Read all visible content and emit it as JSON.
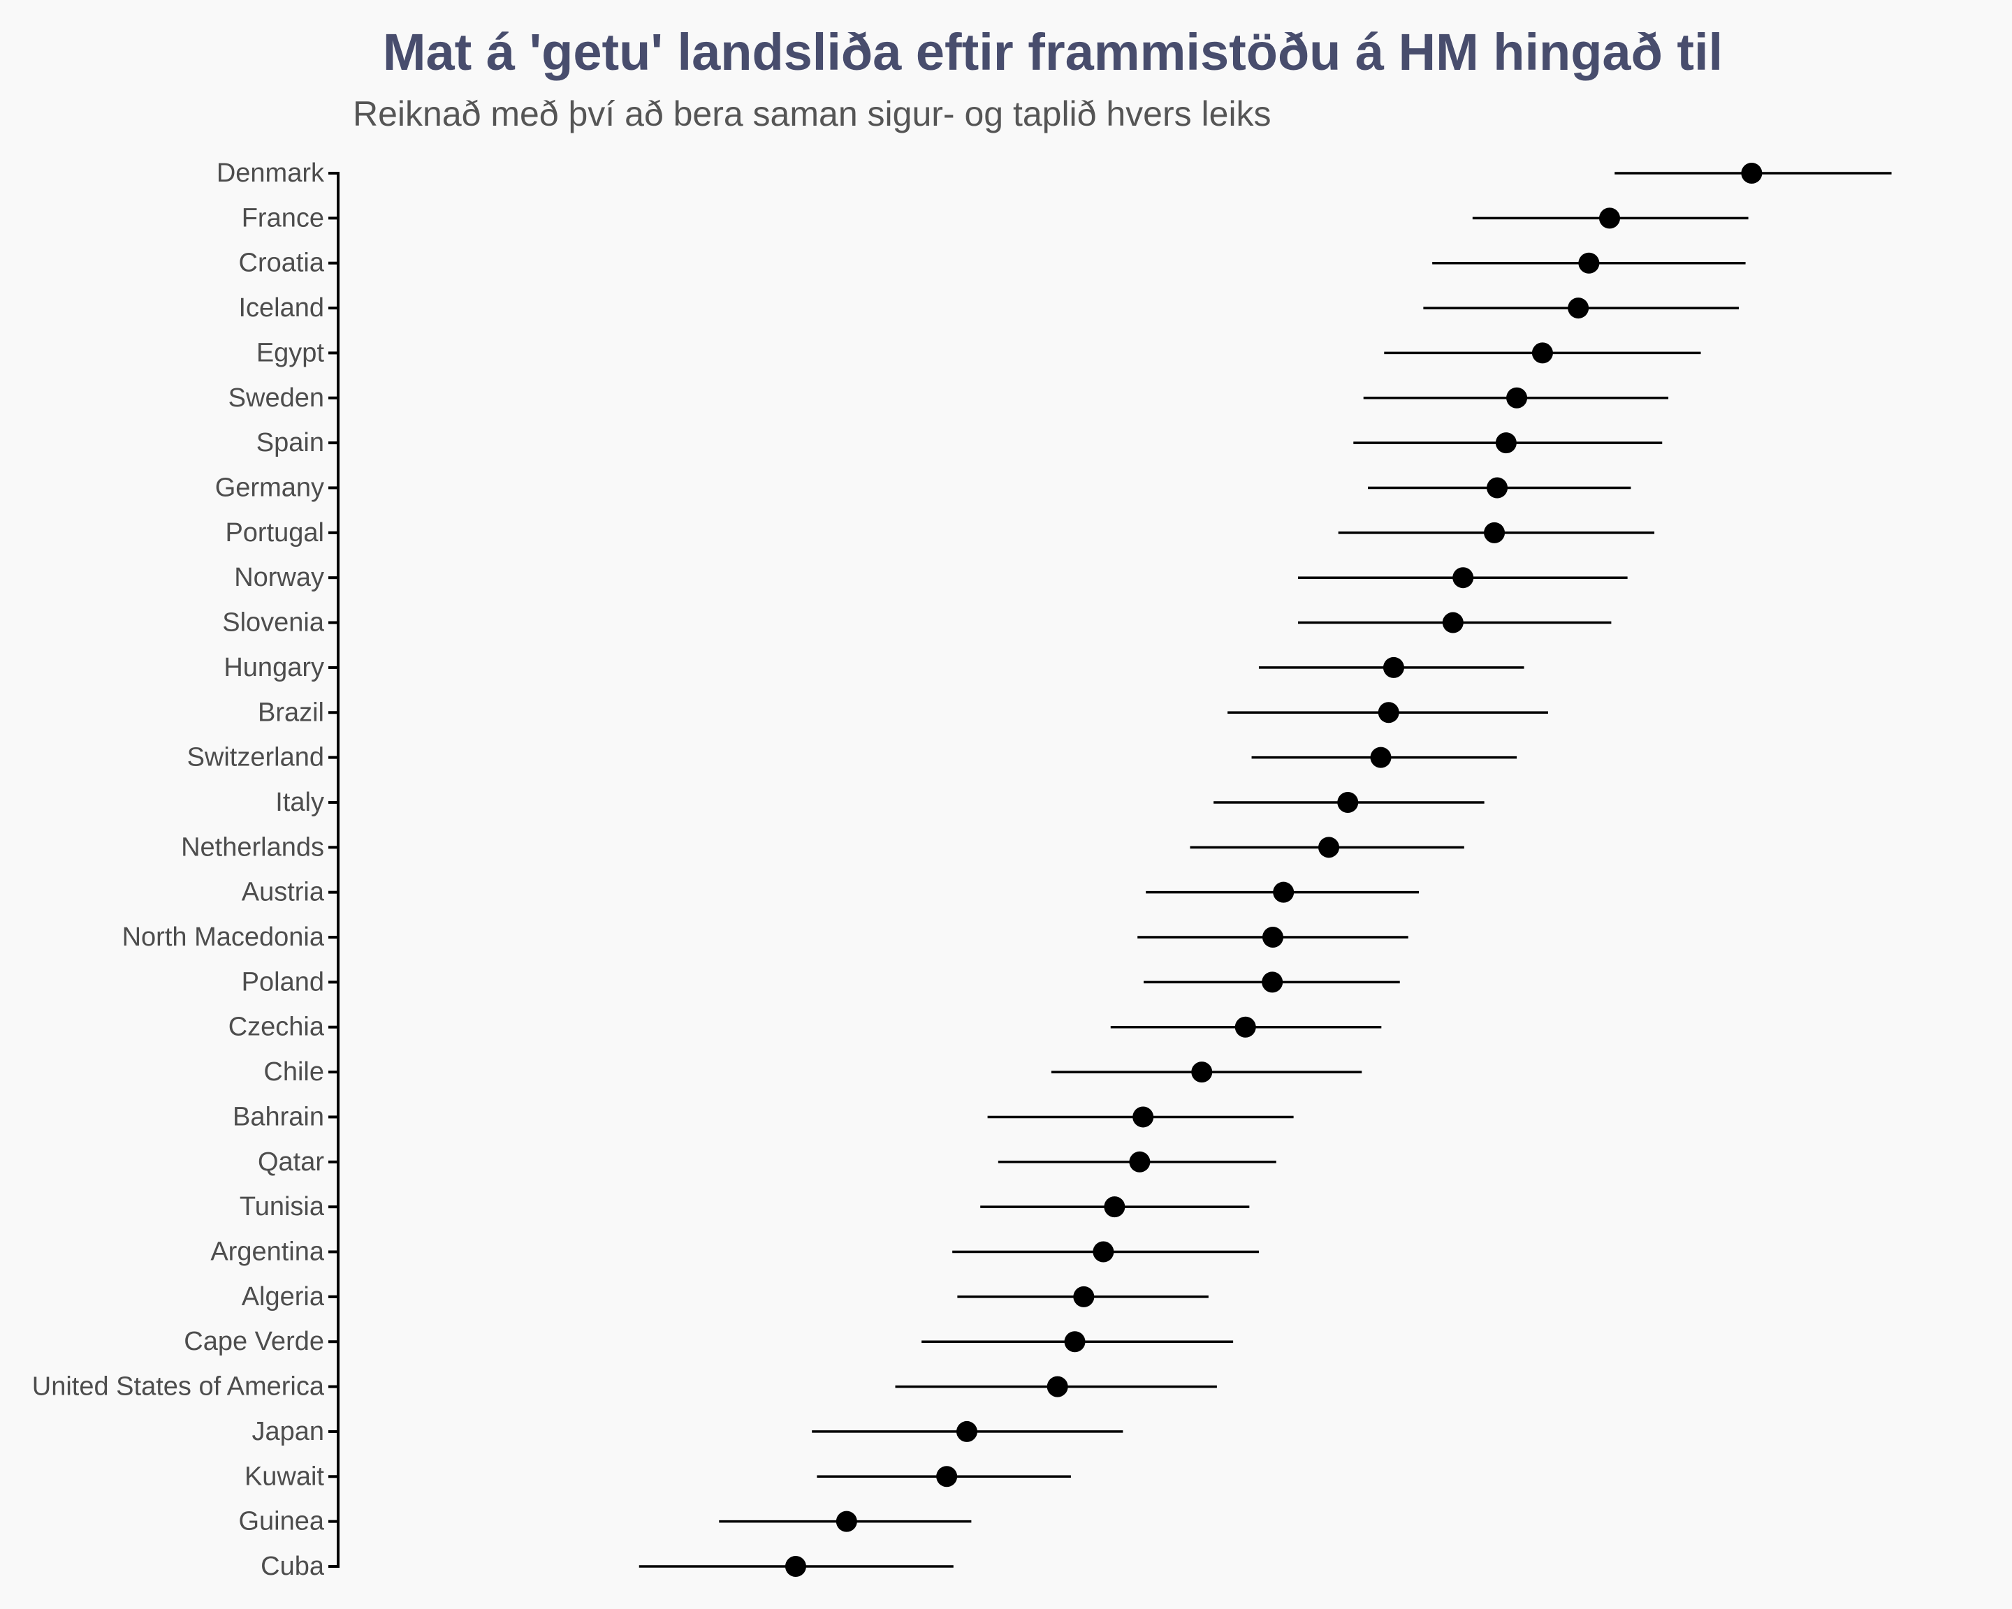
{
  "chart_data": {
    "type": "scatter",
    "subtype": "dot-with-interval",
    "title": "Mat á 'getu' landsliða eftir frammistöðu á HM hingað til",
    "subtitle": "Reiknað með því að bera saman sigur- og taplið hvers leiks",
    "xlabel": "",
    "ylabel": "",
    "xlim": [
      0,
      2800
    ],
    "grid": false,
    "categories": [
      "Denmark",
      "France",
      "Croatia",
      "Iceland",
      "Egypt",
      "Sweden",
      "Spain",
      "Germany",
      "Portugal",
      "Norway",
      "Slovenia",
      "Hungary",
      "Brazil",
      "Switzerland",
      "Italy",
      "Netherlands",
      "Austria",
      "North Macedonia",
      "Poland",
      "Czechia",
      "Chile",
      "Bahrain",
      "Qatar",
      "Tunisia",
      "Argentina",
      "Algeria",
      "Cape Verde",
      "United States of America",
      "Japan",
      "Kuwait",
      "Guinea",
      "Cuba"
    ],
    "series": [
      {
        "estimate": [
          2497,
          2243,
          2206,
          2187,
          2123,
          2077,
          2058,
          2042,
          2037,
          1981,
          1963,
          1857,
          1848,
          1834,
          1775,
          1741,
          1660,
          1641,
          1640,
          1592,
          1514,
          1409,
          1403,
          1358,
          1338,
          1303,
          1287,
          1256,
          1094,
          1058,
          879,
          788
        ],
        "lower": [
          2252,
          1998,
          1926,
          1910,
          1840,
          1803,
          1785,
          1811,
          1758,
          1686,
          1686,
          1616,
          1560,
          1603,
          1535,
          1493,
          1414,
          1399,
          1410,
          1351,
          1245,
          1131,
          1150,
          1118,
          1068,
          1077,
          1013,
          966,
          817,
          826,
          651,
          508
        ],
        "upper": [
          2747,
          2491,
          2486,
          2474,
          2406,
          2348,
          2337,
          2281,
          2323,
          2275,
          2246,
          2090,
          2133,
          2077,
          2019,
          1983,
          1902,
          1883,
          1868,
          1835,
          1800,
          1678,
          1647,
          1599,
          1616,
          1526,
          1570,
          1541,
          1373,
          1280,
          1102,
          1070
        ]
      }
    ],
    "colors": {
      "point": "#000000",
      "interval": "#000000",
      "title": "#484D6D",
      "background": "#F9F9F9"
    }
  }
}
